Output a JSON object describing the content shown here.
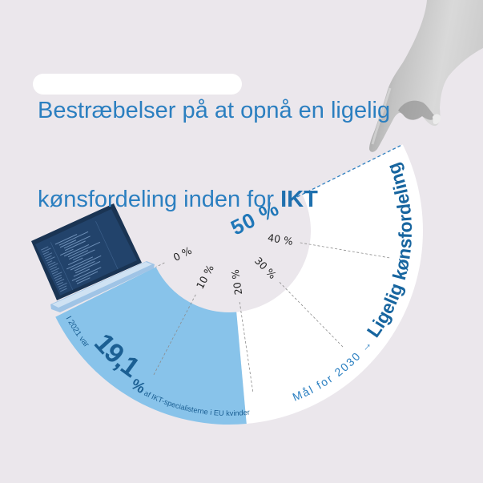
{
  "title": {
    "line1": "Bestræbelser på at opnå en ligelig",
    "line2_highlight": "kønsfordeling inden",
    "line2_middle": " for ",
    "line2_bold": "IKT"
  },
  "colors": {
    "background": "#ebe7ec",
    "title": "#2b7fc0",
    "text_dark_blue": "#1b5f93",
    "current_fill": "#88c3ea",
    "goal_fill": "#ffffff"
  },
  "images": {
    "laptop": "laptop-icon",
    "hand": "pointing-hand-icon"
  },
  "chart_data": {
    "type": "pie",
    "subtype": "half-donut gauge",
    "title": "Bestræbelser på at opnå en ligelig kønsfordeling inden for IKT",
    "scale": {
      "min": 0,
      "max": 50,
      "unit": "%"
    },
    "ticks": [
      {
        "pct": 0,
        "label": "0 %"
      },
      {
        "pct": 10,
        "label": "10 %"
      },
      {
        "pct": 20,
        "label": "20 %"
      },
      {
        "pct": 30,
        "label": "30 %"
      },
      {
        "pct": 40,
        "label": "40 %"
      },
      {
        "pct": 50,
        "label": "50 %"
      }
    ],
    "series": [
      {
        "name": "I 2021 var 19,1 % af IKT-specialisterne i EU kvinder",
        "value": 19.1,
        "color": "#88c3ea"
      },
      {
        "name": "Mål for 2030 → Ligelig kønsfordeling",
        "value": 50,
        "color": "#ffffff"
      }
    ],
    "annotations": {
      "current": {
        "prefix": "I 2021 var ",
        "value": "19,1",
        "unit": " %",
        "suffix": " af IKT-specialisterne i EU kvinder"
      },
      "goal": {
        "prefix": "Mål for 2030 →",
        "emphasis": " Ligelig kønsfordeling"
      }
    },
    "legend": "none",
    "grid": false
  }
}
